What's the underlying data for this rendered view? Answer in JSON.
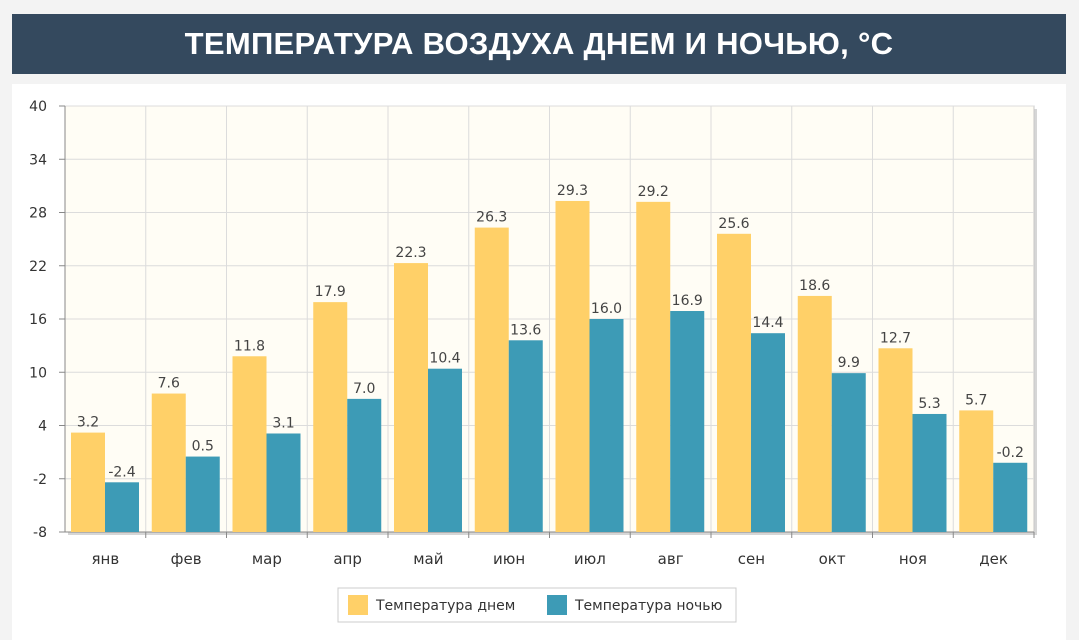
{
  "title": "ТЕМПЕРАТУРА ВОЗДУХА ДНЕМ И НОЧЬЮ, °C",
  "colors": {
    "header_bg": "#34495e",
    "day": "#ffd068",
    "night": "#3d9bb6"
  },
  "chart_data": {
    "type": "bar",
    "categories": [
      "янв",
      "фев",
      "мар",
      "апр",
      "май",
      "июн",
      "июл",
      "авг",
      "сен",
      "окт",
      "ноя",
      "дек"
    ],
    "series": [
      {
        "name": "Температура днем",
        "values": [
          3.2,
          7.6,
          11.8,
          17.9,
          22.3,
          26.3,
          29.3,
          29.2,
          25.6,
          18.6,
          12.7,
          5.7
        ]
      },
      {
        "name": "Температура ночью",
        "values": [
          -2.4,
          0.5,
          3.1,
          7.0,
          10.4,
          13.6,
          16.0,
          16.9,
          14.4,
          9.9,
          5.3,
          -0.2
        ]
      }
    ],
    "value_labels": [
      [
        "3.2",
        "7.6",
        "11.8",
        "17.9",
        "22.3",
        "26.3",
        "29.3",
        "29.2",
        "25.6",
        "18.6",
        "12.7",
        "5.7"
      ],
      [
        "-2.4",
        "0.5",
        "3.1",
        "7.0",
        "10.4",
        "13.6",
        "16.0",
        "16.9",
        "14.4",
        "9.9",
        "5.3",
        "-0.2"
      ]
    ],
    "yticks": [
      "40",
      "34",
      "28",
      "22",
      "16",
      "10",
      "4",
      "-2",
      "-8"
    ],
    "ylim": [
      -8,
      40
    ],
    "grid": true,
    "legend_position": "bottom-center"
  }
}
